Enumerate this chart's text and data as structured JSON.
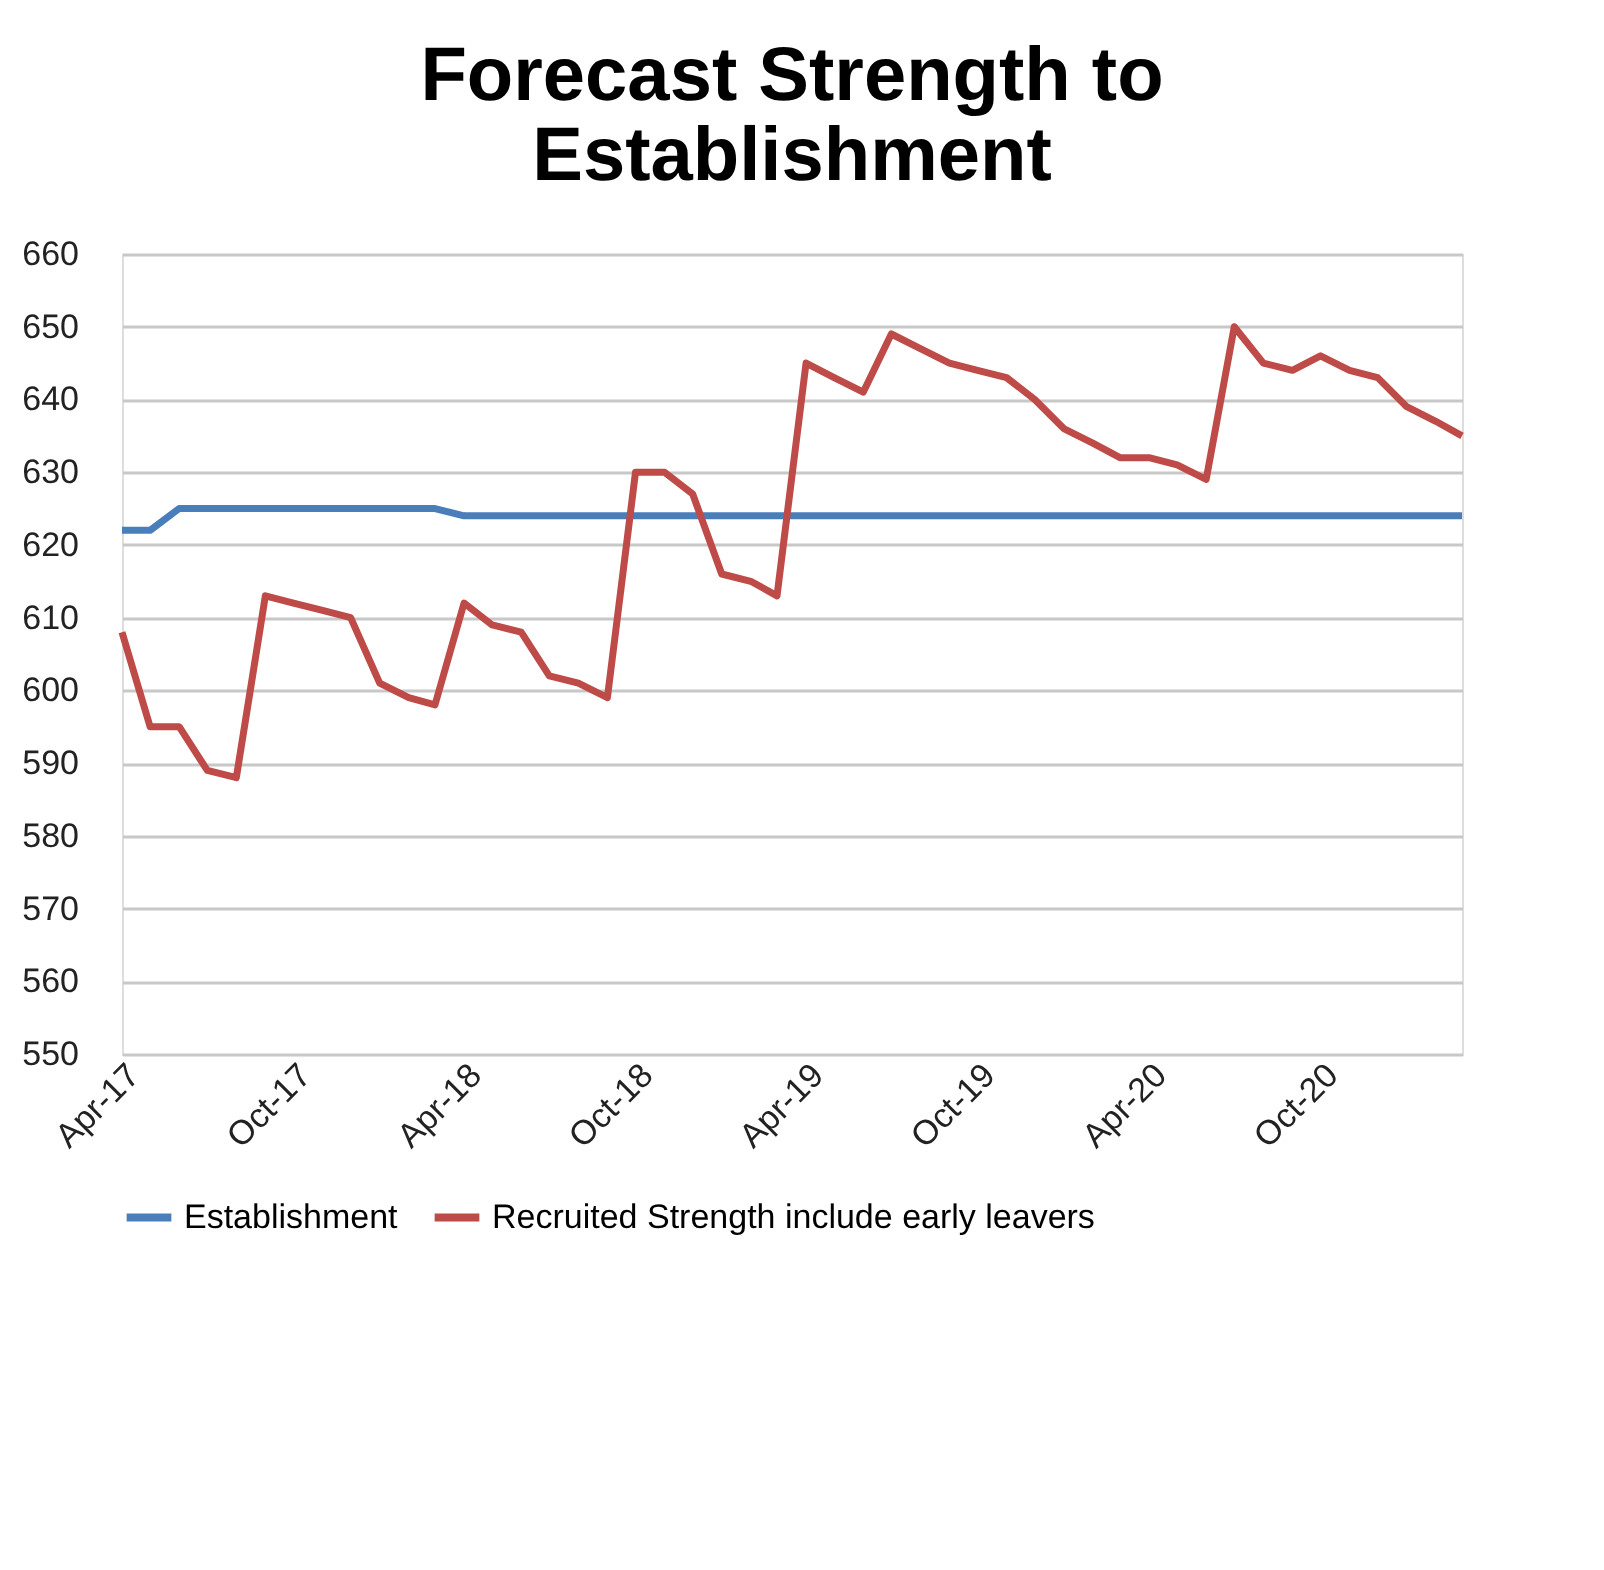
{
  "chart_data": {
    "type": "line",
    "title": "Forecast Strength to Establishment",
    "x": [
      "2017-04",
      "2017-05",
      "2017-06",
      "2017-07",
      "2017-08",
      "2017-09",
      "2017-10",
      "2017-11",
      "2017-12",
      "2018-01",
      "2018-02",
      "2018-03",
      "2018-04",
      "2018-05",
      "2018-06",
      "2018-07",
      "2018-08",
      "2018-09",
      "2018-10",
      "2018-11",
      "2018-12",
      "2019-01",
      "2019-02",
      "2019-03",
      "2019-04",
      "2019-05",
      "2019-06",
      "2019-07",
      "2019-08",
      "2019-09",
      "2019-10",
      "2019-11",
      "2019-12",
      "2020-01",
      "2020-02",
      "2020-03",
      "2020-04",
      "2020-05",
      "2020-06",
      "2020-07",
      "2020-08",
      "2020-09",
      "2020-10",
      "2020-11",
      "2020-12",
      "2021-01",
      "2021-02",
      "2021-03"
    ],
    "series": [
      {
        "name": "Establishment",
        "color": "#4a7ebb",
        "values": [
          622,
          622,
          625,
          625,
          625,
          625,
          625,
          625,
          625,
          625,
          625,
          625,
          624,
          624,
          624,
          624,
          624,
          624,
          624,
          624,
          624,
          624,
          624,
          624,
          624,
          624,
          624,
          624,
          624,
          624,
          624,
          624,
          624,
          624,
          624,
          624,
          624,
          624,
          624,
          624,
          624,
          624,
          624,
          624,
          624,
          624,
          624,
          624
        ]
      },
      {
        "name": "Recruited Strength include early leavers",
        "color": "#be4b48",
        "values": [
          608,
          595,
          595,
          589,
          588,
          613,
          612,
          611,
          610,
          601,
          599,
          598,
          612,
          609,
          608,
          602,
          601,
          599,
          630,
          630,
          627,
          616,
          615,
          613,
          645,
          643,
          641,
          649,
          647,
          645,
          644,
          643,
          640,
          636,
          634,
          632,
          632,
          631,
          629,
          650,
          645,
          644,
          646,
          644,
          643,
          639,
          637,
          635
        ]
      }
    ],
    "ylim": [
      550,
      660
    ],
    "yticks": [
      550,
      560,
      570,
      580,
      590,
      600,
      610,
      620,
      630,
      640,
      650,
      660
    ],
    "xlim": [
      "2017-04",
      "2021-03"
    ],
    "xticks": [
      {
        "value": "2017-04",
        "label": "Apr-17"
      },
      {
        "value": "2017-10",
        "label": "Oct-17"
      },
      {
        "value": "2018-04",
        "label": "Apr-18"
      },
      {
        "value": "2018-10",
        "label": "Oct-18"
      },
      {
        "value": "2019-04",
        "label": "Apr-19"
      },
      {
        "value": "2019-10",
        "label": "Oct-19"
      },
      {
        "value": "2020-04",
        "label": "Apr-20"
      },
      {
        "value": "2020-10",
        "label": "Oct-20"
      }
    ],
    "grid": "y",
    "legend": "bottom",
    "marker": "none",
    "line_style": "solid"
  }
}
